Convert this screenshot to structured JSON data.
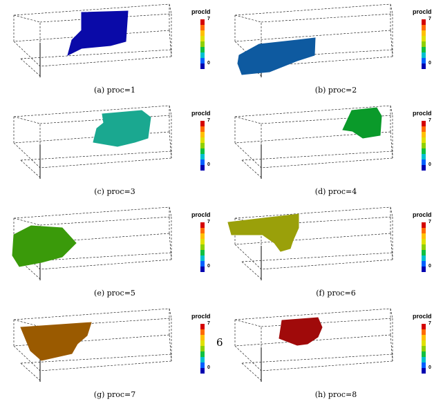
{
  "legend": {
    "title": "procId",
    "max_label": "7",
    "min_label": "0",
    "colormap": [
      "#d40000",
      "#ff6a00",
      "#ffc000",
      "#e0e000",
      "#8fd000",
      "#10c040",
      "#00c0d0",
      "#0060ff",
      "#0000b0"
    ]
  },
  "panels": [
    {
      "caption": "(a) proc=1",
      "color": "#0a0aa8"
    },
    {
      "caption": "(b) proc=2",
      "color": "#0e5aa0"
    },
    {
      "caption": "(c) proc=3",
      "color": "#1aa890"
    },
    {
      "caption": "(d) proc=4",
      "color": "#0a9a2a"
    },
    {
      "caption": "(e) proc=5",
      "color": "#3a9a0a"
    },
    {
      "caption": "(f) proc=6",
      "color": "#9aa00a"
    },
    {
      "caption": "(g) proc=7",
      "color": "#9a5a00"
    },
    {
      "caption": "(h) proc=8",
      "color": "#a00a0a"
    }
  ],
  "page_number": "6"
}
